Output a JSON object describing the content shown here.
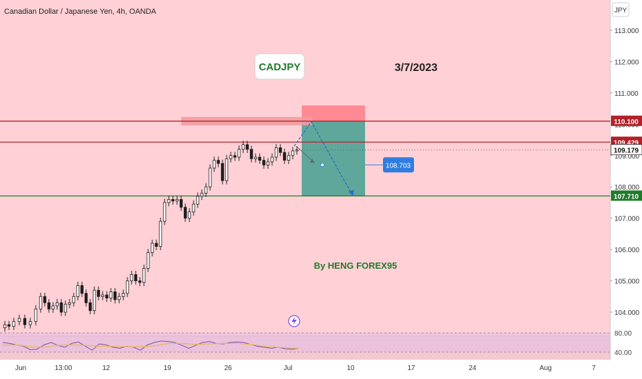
{
  "header": {
    "symbol_title": "Canadian Dollar / Japanese Yen, 4h, OANDA"
  },
  "annotations": {
    "pair_label": "CADJPY",
    "date_label": "3/7/2023",
    "author_label": "By HENG FOREX95",
    "target_callout": "108.703"
  },
  "price_axis": {
    "currency": "JPY",
    "ticks": [
      "113.000",
      "112.000",
      "111.000",
      "110.000",
      "109.000",
      "108.000",
      "107.000",
      "106.000",
      "105.000",
      "104.000"
    ],
    "tick_values": [
      113,
      112,
      111,
      110,
      109,
      108,
      107,
      106,
      105,
      104
    ]
  },
  "price_tags": [
    {
      "label": "110.100",
      "value": 110.1,
      "color": "#b2202a"
    },
    {
      "label": "109.429",
      "value": 109.429,
      "color": "#b2202a"
    },
    {
      "label": "109.179",
      "value": 109.179,
      "color": "#ffffff"
    },
    {
      "label": "107.710",
      "value": 107.71,
      "color": "#1f7a2c"
    }
  ],
  "rsi_axis": {
    "ticks": [
      "80.00",
      "40.00"
    ],
    "tick_values": [
      80,
      40
    ]
  },
  "time_axis": {
    "labels": [
      "Jun",
      "13:00",
      "12",
      "19",
      "26",
      "Jul",
      "10",
      "17",
      "24",
      "Aug",
      "7"
    ]
  },
  "colors": {
    "background": "#ffd1d6",
    "bull": "#1f1f1f",
    "bear": "#1f1f1f",
    "resistance_line": "#b2202a",
    "support_line": "#1f7a2c",
    "stop_zone": "#ff8a94",
    "target_zone": "#5fa79a",
    "projection": "#1e6fd0",
    "callout": "#2f7de0",
    "rsi_line": "#7a4ca8",
    "rsi_ma": "#e6b85c"
  },
  "icons": {
    "lightning": "lightning-icon"
  },
  "chart_data": {
    "type": "candlestick",
    "title": "Canadian Dollar / Japanese Yen, 4h, OANDA",
    "y_unit": "JPY",
    "ylim": [
      103.3,
      113.9
    ],
    "x_labels": [
      "Jun",
      "13:00",
      "12",
      "19",
      "26",
      "Jul",
      "10",
      "17",
      "24",
      "Aug",
      "7"
    ],
    "horizontal_levels": [
      110.1,
      109.429,
      107.71
    ],
    "last_price": 109.179,
    "short_position": {
      "entry": 110.1,
      "stop": 110.6,
      "target": 107.71
    },
    "target_callout": 108.703,
    "close_path": [
      [
        0,
        103.5
      ],
      [
        6,
        103.6
      ],
      [
        12,
        103.55
      ],
      [
        20,
        103.7
      ],
      [
        28,
        103.8
      ],
      [
        36,
        103.6
      ],
      [
        44,
        103.7
      ],
      [
        52,
        104.1
      ],
      [
        58,
        104.5
      ],
      [
        64,
        104.3
      ],
      [
        70,
        104.1
      ],
      [
        76,
        104.2
      ],
      [
        82,
        104.3
      ],
      [
        88,
        104.0
      ],
      [
        94,
        104.25
      ],
      [
        100,
        104.3
      ],
      [
        106,
        104.5
      ],
      [
        112,
        104.85
      ],
      [
        118,
        104.6
      ],
      [
        124,
        104.3
      ],
      [
        130,
        104.05
      ],
      [
        136,
        104.7
      ],
      [
        142,
        104.5
      ],
      [
        148,
        104.55
      ],
      [
        154,
        104.45
      ],
      [
        160,
        104.65
      ],
      [
        166,
        104.4
      ],
      [
        172,
        104.5
      ],
      [
        178,
        104.6
      ],
      [
        184,
        105.0
      ],
      [
        190,
        105.2
      ],
      [
        196,
        105.0
      ],
      [
        202,
        104.95
      ],
      [
        208,
        105.4
      ],
      [
        214,
        105.9
      ],
      [
        220,
        106.2
      ],
      [
        226,
        106.1
      ],
      [
        232,
        106.9
      ],
      [
        238,
        107.5
      ],
      [
        244,
        107.6
      ],
      [
        250,
        107.55
      ],
      [
        256,
        107.6
      ],
      [
        262,
        107.35
      ],
      [
        268,
        107.0
      ],
      [
        274,
        107.2
      ],
      [
        280,
        107.45
      ],
      [
        286,
        107.7
      ],
      [
        292,
        107.8
      ],
      [
        298,
        108.0
      ],
      [
        304,
        108.6
      ],
      [
        310,
        108.85
      ],
      [
        316,
        108.75
      ],
      [
        322,
        108.2
      ],
      [
        328,
        108.9
      ],
      [
        334,
        109.0
      ],
      [
        340,
        108.95
      ],
      [
        346,
        109.2
      ],
      [
        352,
        109.35
      ],
      [
        358,
        109.2
      ],
      [
        364,
        108.9
      ],
      [
        370,
        108.95
      ],
      [
        376,
        108.85
      ],
      [
        382,
        108.7
      ],
      [
        388,
        108.8
      ],
      [
        394,
        108.95
      ],
      [
        400,
        109.25
      ],
      [
        406,
        109.1
      ],
      [
        412,
        108.85
      ],
      [
        418,
        109.0
      ],
      [
        424,
        109.15
      ],
      [
        430,
        109.18
      ]
    ],
    "rsi": [
      [
        0,
        60
      ],
      [
        10,
        58
      ],
      [
        20,
        55
      ],
      [
        30,
        52
      ],
      [
        40,
        45
      ],
      [
        50,
        46
      ],
      [
        60,
        55
      ],
      [
        70,
        60
      ],
      [
        80,
        54
      ],
      [
        90,
        50
      ],
      [
        100,
        58
      ],
      [
        110,
        61
      ],
      [
        120,
        52
      ],
      [
        130,
        44
      ],
      [
        140,
        57
      ],
      [
        150,
        55
      ],
      [
        160,
        50
      ],
      [
        170,
        48
      ],
      [
        180,
        52
      ],
      [
        190,
        50
      ],
      [
        200,
        44
      ],
      [
        210,
        55
      ],
      [
        220,
        60
      ],
      [
        230,
        63
      ],
      [
        240,
        62
      ],
      [
        250,
        60
      ],
      [
        260,
        54
      ],
      [
        270,
        48
      ],
      [
        280,
        54
      ],
      [
        290,
        60
      ],
      [
        300,
        62
      ],
      [
        310,
        58
      ],
      [
        320,
        57
      ],
      [
        330,
        60
      ],
      [
        340,
        61
      ],
      [
        350,
        60
      ],
      [
        360,
        56
      ],
      [
        370,
        52
      ],
      [
        380,
        50
      ],
      [
        390,
        48
      ],
      [
        400,
        50
      ],
      [
        410,
        47
      ],
      [
        420,
        46
      ],
      [
        430,
        48
      ]
    ],
    "rsi_ma": [
      [
        0,
        54
      ],
      [
        20,
        55
      ],
      [
        40,
        51
      ],
      [
        60,
        50
      ],
      [
        80,
        54
      ],
      [
        100,
        55
      ],
      [
        120,
        54
      ],
      [
        140,
        52
      ],
      [
        160,
        52
      ],
      [
        180,
        51
      ],
      [
        200,
        51
      ],
      [
        220,
        53
      ],
      [
        240,
        58
      ],
      [
        260,
        58
      ],
      [
        280,
        56
      ],
      [
        300,
        57
      ],
      [
        320,
        58
      ],
      [
        340,
        58
      ],
      [
        360,
        56
      ],
      [
        380,
        52
      ],
      [
        400,
        50
      ],
      [
        420,
        48
      ],
      [
        430,
        48
      ]
    ],
    "rsi_levels": [
      80,
      40
    ]
  }
}
